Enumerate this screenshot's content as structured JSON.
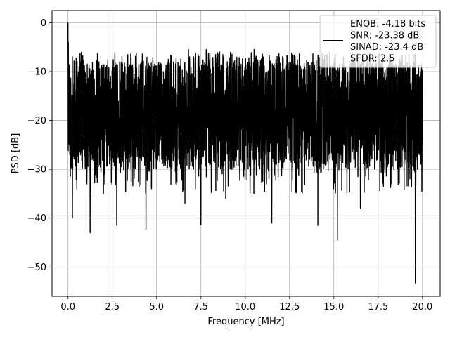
{
  "chart_data": {
    "type": "line",
    "title": "",
    "xlabel": "Frequency [MHz]",
    "ylabel": "PSD [dB]",
    "xlim": [
      -0.9,
      21.0
    ],
    "ylim": [
      -56,
      2.5
    ],
    "xticks": [
      0.0,
      2.5,
      5.0,
      7.5,
      10.0,
      12.5,
      15.0,
      17.5,
      20.0
    ],
    "xtick_labels": [
      "0.0",
      "2.5",
      "5.0",
      "7.5",
      "10.0",
      "12.5",
      "15.0",
      "17.5",
      "20.0"
    ],
    "yticks": [
      0,
      -10,
      -20,
      -30,
      -40,
      -50
    ],
    "ytick_labels": [
      "0",
      "−10",
      "−20",
      "−30",
      "−40",
      "−50"
    ],
    "grid": true,
    "legend_position": "top-right",
    "series": [
      {
        "color": "#000000",
        "noise_band_db": [
          -30,
          -8
        ],
        "envelope_points": {
          "x": [
            0.0,
            0.02,
            0.05,
            0.1,
            0.25,
            0.5,
            1.0,
            1.25,
            2.0,
            2.75,
            4.4,
            6.6,
            7.5,
            8.9,
            11.5,
            14.1,
            15.2,
            16.5,
            19.6,
            20.0
          ],
          "y": [
            0.0,
            -4.0,
            -15.0,
            -27.0,
            -40.0,
            -34.0,
            -29.0,
            -43.0,
            -35.0,
            -41.5,
            -42.3,
            -37.0,
            -41.3,
            -36.0,
            -41.0,
            -41.5,
            -44.5,
            -38.0,
            -53.3,
            -25.0
          ]
        }
      }
    ],
    "legend_entries": [
      "ENOB: -4.18 bits",
      "SNR: -23.38 dB",
      "SINAD: -23.4 dB",
      "SFDR: 2.5"
    ]
  }
}
